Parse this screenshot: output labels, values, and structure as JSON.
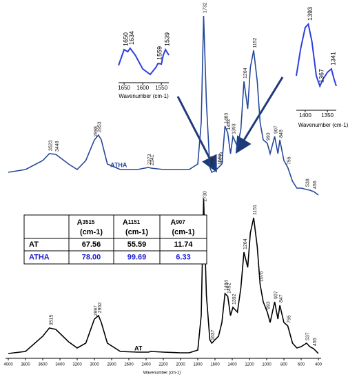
{
  "chart_data": {
    "type": "line",
    "xlabel": "Wavenumber (cm-1)",
    "xlim": [
      4000,
      400
    ],
    "xticks": [
      4000,
      3800,
      3600,
      3400,
      3200,
      3000,
      2800,
      2600,
      2400,
      2200,
      2000,
      1800,
      1600,
      1400,
      1200,
      1000,
      800,
      600,
      400
    ],
    "x": [
      4000,
      3800,
      3600,
      3523,
      3448,
      3300,
      3200,
      3100,
      3000,
      2953,
      2920,
      2850,
      2700,
      2500,
      2373,
      2341,
      2200,
      2000,
      1900,
      1800,
      1760,
      1732,
      1700,
      1660,
      1637,
      1600,
      1559,
      1520,
      1484,
      1452,
      1420,
      1392,
      1340,
      1300,
      1264,
      1220,
      1190,
      1151,
      1110,
      1076,
      1040,
      993,
      960,
      907,
      870,
      847,
      800,
      755,
      700,
      650,
      600,
      537,
      500,
      455,
      400
    ],
    "series": [
      {
        "name": "ATHA",
        "color": "#23479b",
        "values": [
          268,
          272,
          285,
          295,
          294,
          280,
          272,
          285,
          315,
          322,
          315,
          280,
          272,
          272,
          275,
          274,
          272,
          272,
          272,
          280,
          340,
          495,
          370,
          275,
          268,
          270,
          275,
          280,
          335,
          325,
          295,
          320,
          305,
          330,
          400,
          360,
          420,
          445,
          400,
          340,
          315,
          310,
          295,
          320,
          295,
          315,
          285,
          275,
          255,
          245,
          245,
          243,
          242,
          240,
          235
        ],
        "peaks": [
          3523,
          3448,
          2998,
          2953,
          2373,
          2341,
          1732,
          1650,
          1559,
          1539,
          1483,
          1453,
          1393,
          1264,
          1152,
          993,
          907,
          848,
          755,
          538,
          456
        ]
      },
      {
        "name": "AT",
        "color": "#000000",
        "values": [
          5,
          8,
          30,
          42,
          40,
          22,
          13,
          20,
          55,
          60,
          50,
          20,
          8,
          7,
          7,
          8,
          7,
          6,
          6,
          10,
          60,
          230,
          90,
          25,
          20,
          25,
          30,
          50,
          92,
          88,
          60,
          72,
          65,
          100,
          152,
          130,
          180,
          202,
          160,
          105,
          80,
          65,
          50,
          80,
          55,
          75,
          50,
          45,
          20,
          13,
          15,
          20,
          15,
          12,
          5
        ],
        "peaks": [
          3515,
          2997,
          2952,
          1730,
          1637,
          1484,
          1452,
          1392,
          1264,
          1151,
          1076,
          993,
          907,
          847,
          755,
          537,
          455
        ]
      }
    ],
    "insets": [
      {
        "xlabel": "Wavenumber (cm-1)",
        "color": "#2b3fe0",
        "xlim": [
          1665,
          1530
        ],
        "xticks": [
          1650,
          1600,
          1550
        ],
        "x": [
          1665,
          1650,
          1640,
          1634,
          1620,
          1600,
          1580,
          1565,
          1559,
          1550,
          1545,
          1539,
          1530
        ],
        "values": [
          25,
          48,
          45,
          50,
          40,
          20,
          12,
          22,
          28,
          27,
          40,
          48,
          40
        ],
        "peaks": [
          1650,
          1634,
          1559,
          1539
        ]
      },
      {
        "xlabel": "Wavenumber (cm-1)",
        "color": "#2b3fe0",
        "xlim": [
          1420,
          1330
        ],
        "xticks": [
          1400,
          1350
        ],
        "x": [
          1420,
          1410,
          1400,
          1393,
          1385,
          1375,
          1367,
          1360,
          1350,
          1341,
          1335,
          1330
        ],
        "values": [
          50,
          90,
          120,
          125,
          100,
          50,
          35,
          45,
          55,
          60,
          45,
          35
        ],
        "peaks": [
          1393,
          1367,
          1341
        ]
      }
    ],
    "table": {
      "symbol": "A",
      "unit": "(cm-1)",
      "columns": [
        "3515",
        "1151",
        "907"
      ],
      "rows": [
        {
          "name": "AT",
          "color": "#000000",
          "values": [
            "67.56",
            "55.59",
            "11.74"
          ]
        },
        {
          "name": "ATHA",
          "color": "#2020d0",
          "values": [
            "78.00",
            "99.69",
            "6.33"
          ]
        }
      ]
    }
  }
}
